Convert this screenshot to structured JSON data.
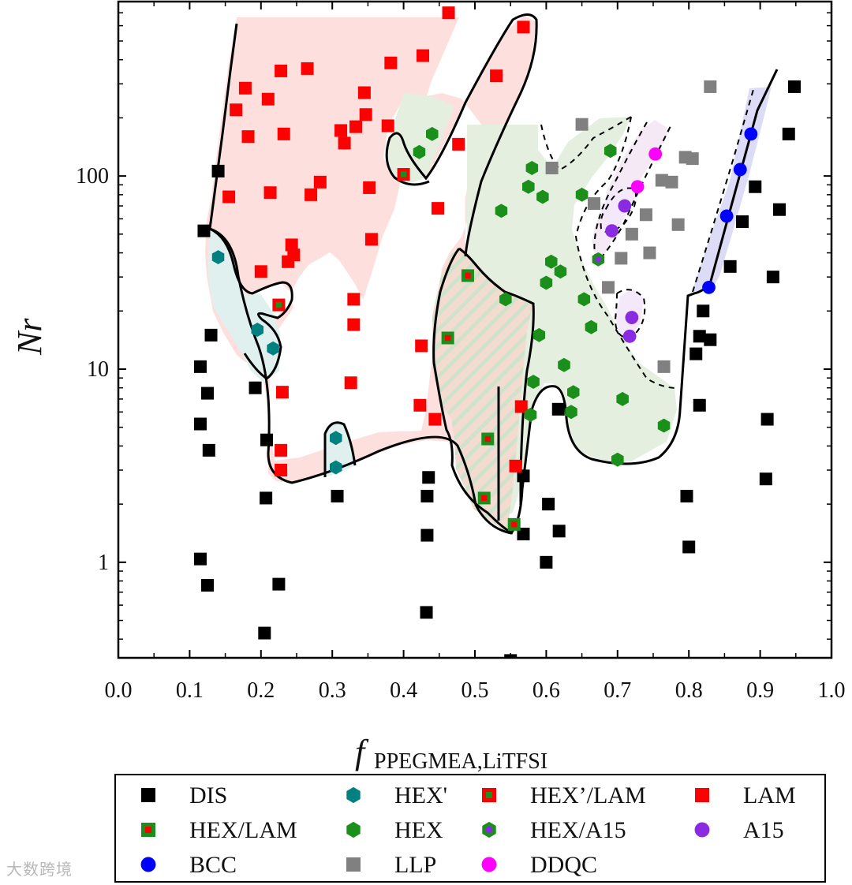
{
  "chart_data": {
    "type": "scatter",
    "title": "",
    "xlabel": "f",
    "xlabel_subscript": "PPEGMEA,LiTFSI",
    "ylabel": "Nr",
    "xlim": [
      0.0,
      1.0
    ],
    "ylim": [
      0.32,
      800
    ],
    "yscale": "log",
    "x_ticks": [
      "0.0",
      "0.1",
      "0.2",
      "0.3",
      "0.4",
      "0.5",
      "0.6",
      "0.7",
      "0.8",
      "0.9",
      "1.0"
    ],
    "y_ticks": [
      "1",
      "10",
      "100"
    ],
    "grid": false,
    "legend_position": "bottom",
    "series": [
      {
        "name": "DIS",
        "marker": "square",
        "color": "#000000",
        "points": [
          [
            0.12,
            52
          ],
          [
            0.14,
            106
          ],
          [
            0.115,
            10.3
          ],
          [
            0.125,
            7.5
          ],
          [
            0.13,
            15
          ],
          [
            0.115,
            5.2
          ],
          [
            0.127,
            3.8
          ],
          [
            0.115,
            1.04
          ],
          [
            0.125,
            0.76
          ],
          [
            0.192,
            8.0
          ],
          [
            0.208,
            4.3
          ],
          [
            0.207,
            2.15
          ],
          [
            0.205,
            0.43
          ],
          [
            0.225,
            0.77
          ],
          [
            0.307,
            2.2
          ],
          [
            0.435,
            2.75
          ],
          [
            0.433,
            2.2
          ],
          [
            0.433,
            1.38
          ],
          [
            0.432,
            0.55
          ],
          [
            0.55,
            0.31
          ],
          [
            0.568,
            2.8
          ],
          [
            0.568,
            1.4
          ],
          [
            0.603,
            2.0
          ],
          [
            0.6,
            1.0
          ],
          [
            0.618,
            1.45
          ],
          [
            0.617,
            6.2
          ],
          [
            0.797,
            2.2
          ],
          [
            0.8,
            1.2
          ],
          [
            0.81,
            12
          ],
          [
            0.815,
            6.5
          ],
          [
            0.815,
            14.8
          ],
          [
            0.82,
            20
          ],
          [
            0.83,
            14.2
          ],
          [
            0.858,
            34
          ],
          [
            0.875,
            58
          ],
          [
            0.893,
            88
          ],
          [
            0.91,
            5.5
          ],
          [
            0.908,
            2.7
          ],
          [
            0.918,
            30
          ],
          [
            0.927,
            67
          ],
          [
            0.94,
            165
          ],
          [
            0.948,
            290
          ]
        ]
      },
      {
        "name": "HEX'",
        "marker": "hexagon",
        "color": "#008080",
        "points": [
          [
            0.14,
            38
          ],
          [
            0.195,
            16
          ],
          [
            0.217,
            12.8
          ],
          [
            0.305,
            4.4
          ],
          [
            0.305,
            3.1
          ]
        ]
      },
      {
        "name": "HEX'/LAM",
        "marker": "square-inner",
        "color": "#1a8f1a",
        "edge": "#ff0000",
        "points": [
          [
            0.225,
            21.5
          ],
          [
            0.4,
            102
          ]
        ]
      },
      {
        "name": "LAM",
        "marker": "square",
        "color": "#ff0000",
        "points": [
          [
            0.165,
            220
          ],
          [
            0.178,
            285
          ],
          [
            0.182,
            160
          ],
          [
            0.155,
            78
          ],
          [
            0.21,
            250
          ],
          [
            0.213,
            82
          ],
          [
            0.2,
            32
          ],
          [
            0.228,
            350
          ],
          [
            0.232,
            165
          ],
          [
            0.238,
            36
          ],
          [
            0.243,
            44
          ],
          [
            0.246,
            39
          ],
          [
            0.265,
            360
          ],
          [
            0.27,
            80
          ],
          [
            0.283,
            93
          ],
          [
            0.312,
            172
          ],
          [
            0.317,
            148
          ],
          [
            0.333,
            180
          ],
          [
            0.345,
            270
          ],
          [
            0.347,
            208
          ],
          [
            0.352,
            87
          ],
          [
            0.355,
            47
          ],
          [
            0.33,
            23
          ],
          [
            0.33,
            17
          ],
          [
            0.326,
            8.5
          ],
          [
            0.23,
            7.6
          ],
          [
            0.228,
            3.8
          ],
          [
            0.228,
            3.0
          ],
          [
            0.378,
            182
          ],
          [
            0.382,
            385
          ],
          [
            0.427,
            420
          ],
          [
            0.425,
            13.2
          ],
          [
            0.423,
            6.5
          ],
          [
            0.444,
            5.5
          ],
          [
            0.448,
            68
          ],
          [
            0.477,
            146
          ],
          [
            0.463,
            700
          ],
          [
            0.53,
            330
          ],
          [
            0.568,
            590
          ],
          [
            0.565,
            6.4
          ],
          [
            0.557,
            3.15
          ]
        ]
      },
      {
        "name": "HEX/LAM",
        "marker": "square-inner",
        "color": "#ff0000",
        "edge": "#1a8f1a",
        "points": [
          [
            0.49,
            30.5
          ],
          [
            0.462,
            14.5
          ],
          [
            0.518,
            4.35
          ],
          [
            0.513,
            2.15
          ],
          [
            0.555,
            1.57
          ]
        ]
      },
      {
        "name": "HEX",
        "marker": "hexagon",
        "color": "#1a8f1a",
        "points": [
          [
            0.422,
            133
          ],
          [
            0.44,
            165
          ],
          [
            0.537,
            66
          ],
          [
            0.543,
            23
          ],
          [
            0.575,
            88
          ],
          [
            0.58,
            110
          ],
          [
            0.595,
            78
          ],
          [
            0.6,
            28
          ],
          [
            0.607,
            36
          ],
          [
            0.62,
            32
          ],
          [
            0.59,
            15
          ],
          [
            0.582,
            8.6
          ],
          [
            0.578,
            5.8
          ],
          [
            0.625,
            10.5
          ],
          [
            0.638,
            7.6
          ],
          [
            0.635,
            6.0
          ],
          [
            0.65,
            80
          ],
          [
            0.653,
            23
          ],
          [
            0.663,
            16.5
          ],
          [
            0.69,
            135
          ],
          [
            0.7,
            3.4
          ],
          [
            0.707,
            7.0
          ],
          [
            0.765,
            5.1
          ]
        ]
      },
      {
        "name": "HEX/A15",
        "marker": "hexagon",
        "color": "#1a8f1a",
        "inner": "#8a2be2",
        "points": [
          [
            0.673,
            37
          ]
        ]
      },
      {
        "name": "A15",
        "marker": "circle",
        "color": "#8a2be2",
        "points": [
          [
            0.692,
            52
          ],
          [
            0.71,
            70
          ],
          [
            0.72,
            18.5
          ],
          [
            0.717,
            14.8
          ]
        ]
      },
      {
        "name": "BCC",
        "marker": "circle",
        "color": "#0000ff",
        "points": [
          [
            0.828,
            26.5
          ],
          [
            0.853,
            62
          ],
          [
            0.872,
            108
          ],
          [
            0.887,
            165
          ]
        ]
      },
      {
        "name": "LLP",
        "marker": "square",
        "color": "#808080",
        "points": [
          [
            0.608,
            110
          ],
          [
            0.65,
            185
          ],
          [
            0.667,
            72
          ],
          [
            0.687,
            26.5
          ],
          [
            0.705,
            37.5
          ],
          [
            0.72,
            50
          ],
          [
            0.74,
            63
          ],
          [
            0.745,
            40
          ],
          [
            0.762,
            95
          ],
          [
            0.776,
            93
          ],
          [
            0.785,
            56
          ],
          [
            0.795,
            125
          ],
          [
            0.805,
            123
          ],
          [
            0.83,
            290
          ],
          [
            0.765,
            10.3
          ]
        ]
      },
      {
        "name": "DDQC",
        "marker": "circle",
        "color": "#ff00ff",
        "points": [
          [
            0.728,
            88
          ],
          [
            0.753,
            130
          ]
        ]
      }
    ],
    "legend_entries": [
      "DIS",
      "HEX'",
      "HEX’/LAM",
      "LAM",
      "HEX/LAM",
      "HEX",
      "HEX/A15",
      "A15",
      "BCC",
      "LLP",
      "DDQC"
    ]
  },
  "watermark": "大数跨境"
}
